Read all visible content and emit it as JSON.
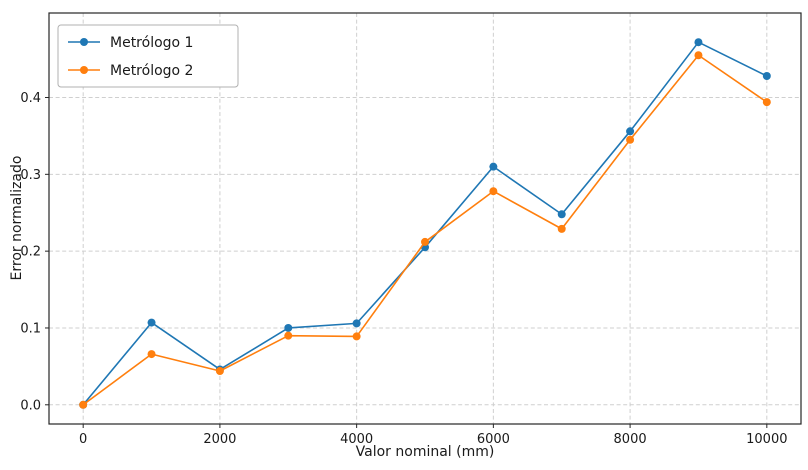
{
  "figure": {
    "background": "#ffffff",
    "border_color": "#262626",
    "grid_color": "#cfcfcf",
    "text_color": "#1a1a1a"
  },
  "chart_data": {
    "type": "line",
    "title": "",
    "xlabel": "Valor nominal (mm)",
    "ylabel": "Error normalizado",
    "x": [
      0,
      1000,
      2000,
      3000,
      4000,
      5000,
      6000,
      7000,
      8000,
      9000,
      10000
    ],
    "series": [
      {
        "name": "Metrólogo 1",
        "color": "#1f77b4",
        "marker": "circle",
        "values": [
          0.0,
          0.107,
          0.046,
          0.1,
          0.106,
          0.205,
          0.31,
          0.248,
          0.356,
          0.472,
          0.428
        ]
      },
      {
        "name": "Metrólogo 2",
        "color": "#ff7f0e",
        "marker": "circle",
        "values": [
          0.0,
          0.066,
          0.044,
          0.09,
          0.089,
          0.212,
          0.278,
          0.229,
          0.345,
          0.455,
          0.394
        ]
      }
    ],
    "xticks": [
      0,
      2000,
      4000,
      6000,
      8000,
      10000
    ],
    "yticks": [
      0.0,
      0.1,
      0.2,
      0.3,
      0.4
    ],
    "xlim": [
      -500,
      10500
    ],
    "ylim": [
      -0.025,
      0.51
    ],
    "grid": true,
    "grid_style": "dashed",
    "legend_position": "upper-left",
    "legend_labels": [
      "Metrólogo 1",
      "Metrólogo 2"
    ]
  }
}
